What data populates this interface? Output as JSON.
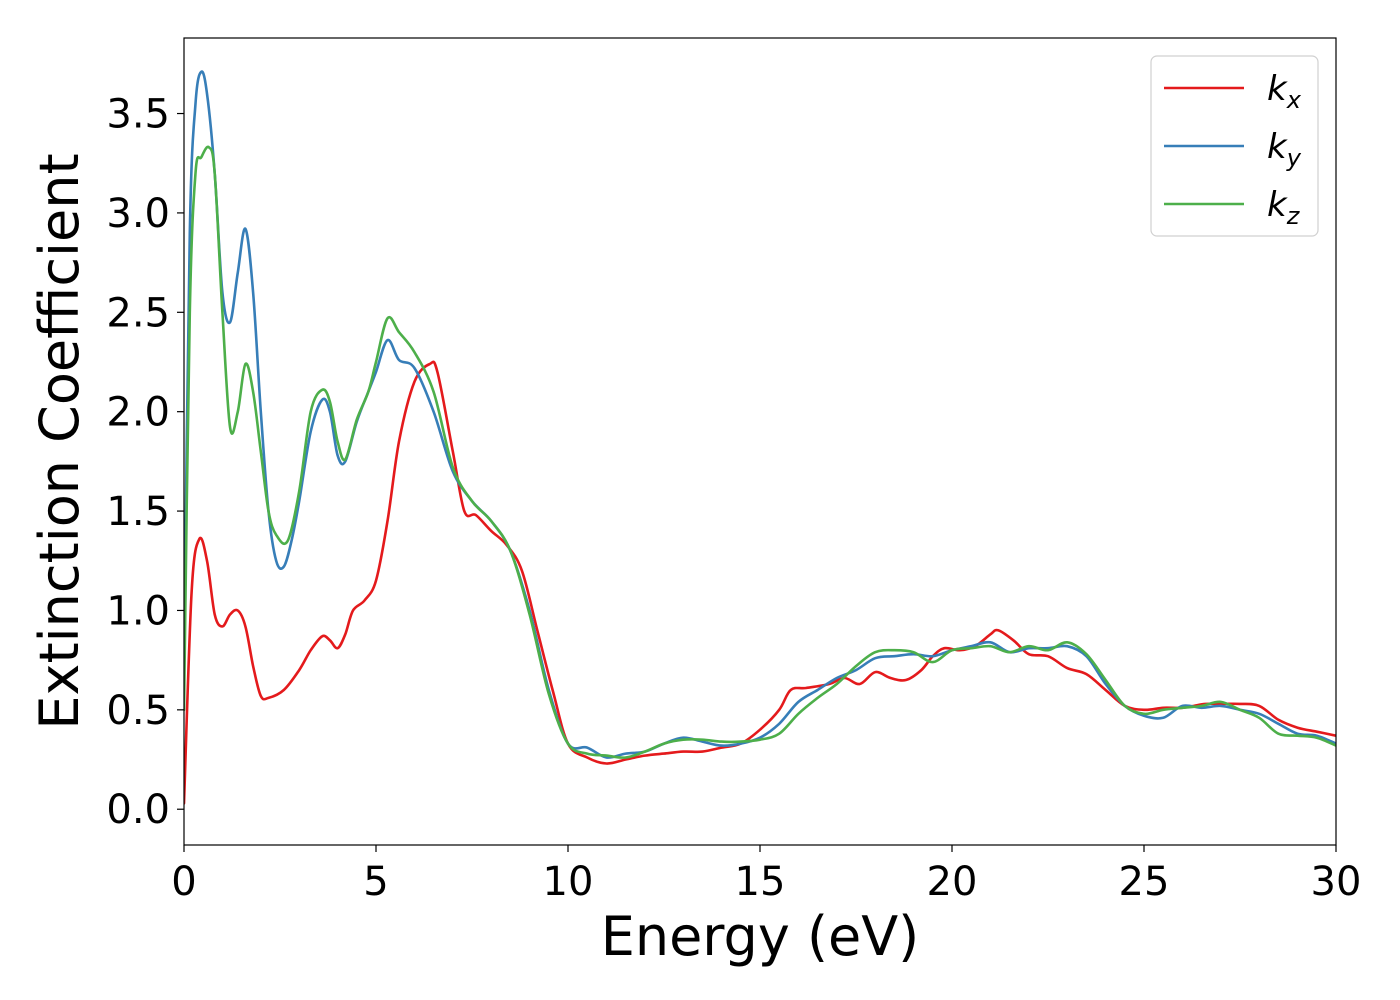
{
  "chart_data": {
    "type": "line",
    "title": "",
    "xlabel": "Energy (eV)",
    "ylabel": "Extinction Coefficient",
    "xlim": [
      0,
      30
    ],
    "ylim": [
      -0.18,
      3.88
    ],
    "xticks": [
      0,
      5,
      10,
      15,
      20,
      25,
      30
    ],
    "xtick_labels": [
      "0",
      "5",
      "10",
      "15",
      "20",
      "25",
      "30"
    ],
    "yticks": [
      0.0,
      0.5,
      1.0,
      1.5,
      2.0,
      2.5,
      3.0,
      3.5
    ],
    "ytick_labels": [
      "0.0",
      "0.5",
      "1.0",
      "1.5",
      "2.0",
      "2.5",
      "3.0",
      "3.5"
    ],
    "grid": false,
    "legend_position": "top-right",
    "series": [
      {
        "name": "k",
        "subscript": "x",
        "color": "#e41a1c",
        "x": [
          0,
          0.2,
          0.4,
          0.6,
          0.8,
          1.0,
          1.2,
          1.4,
          1.6,
          1.8,
          2.0,
          2.2,
          2.6,
          3.0,
          3.3,
          3.6,
          3.8,
          4.0,
          4.2,
          4.4,
          4.7,
          5.0,
          5.3,
          5.6,
          6.0,
          6.4,
          6.6,
          7.0,
          7.3,
          7.6,
          8.0,
          8.4,
          8.8,
          9.2,
          9.6,
          10.0,
          10.5,
          11.0,
          11.5,
          12.0,
          12.5,
          13.0,
          13.5,
          14.0,
          14.5,
          15.0,
          15.5,
          15.8,
          16.2,
          16.8,
          17.2,
          17.6,
          18.0,
          18.4,
          18.8,
          19.2,
          19.5,
          19.8,
          20.2,
          20.6,
          21.0,
          21.2,
          21.6,
          22.0,
          22.5,
          23.0,
          23.5,
          24.0,
          24.5,
          25.0,
          25.5,
          26.0,
          26.3,
          26.6,
          27.0,
          27.5,
          28.0,
          28.5,
          29.0,
          29.5,
          30.0
        ],
        "y": [
          0.03,
          1.1,
          1.36,
          1.25,
          0.98,
          0.92,
          0.98,
          1.0,
          0.92,
          0.72,
          0.57,
          0.56,
          0.6,
          0.7,
          0.8,
          0.87,
          0.85,
          0.81,
          0.88,
          1.0,
          1.05,
          1.15,
          1.45,
          1.85,
          2.15,
          2.24,
          2.2,
          1.8,
          1.5,
          1.48,
          1.4,
          1.33,
          1.2,
          0.9,
          0.6,
          0.33,
          0.26,
          0.23,
          0.25,
          0.27,
          0.28,
          0.29,
          0.29,
          0.31,
          0.33,
          0.4,
          0.5,
          0.6,
          0.61,
          0.63,
          0.66,
          0.63,
          0.69,
          0.66,
          0.65,
          0.7,
          0.77,
          0.81,
          0.8,
          0.82,
          0.88,
          0.9,
          0.85,
          0.78,
          0.77,
          0.71,
          0.68,
          0.6,
          0.52,
          0.5,
          0.51,
          0.51,
          0.52,
          0.53,
          0.53,
          0.53,
          0.52,
          0.45,
          0.41,
          0.39,
          0.37
        ]
      },
      {
        "name": "k",
        "subscript": "y",
        "color": "#377eb8",
        "x": [
          0,
          0.15,
          0.3,
          0.45,
          0.6,
          0.8,
          1.0,
          1.2,
          1.4,
          1.6,
          1.8,
          2.0,
          2.2,
          2.4,
          2.6,
          2.8,
          3.0,
          3.3,
          3.6,
          3.8,
          4.0,
          4.2,
          4.5,
          4.8,
          5.0,
          5.3,
          5.6,
          6.0,
          6.5,
          7.0,
          7.5,
          8.0,
          8.5,
          9.0,
          9.5,
          10.0,
          10.5,
          11.0,
          11.5,
          12.0,
          12.5,
          13.0,
          13.5,
          14.0,
          14.5,
          15.0,
          15.5,
          16.0,
          16.5,
          17.0,
          17.5,
          18.0,
          18.5,
          19.0,
          19.5,
          20.0,
          20.5,
          21.0,
          21.5,
          22.0,
          22.5,
          23.0,
          23.5,
          24.0,
          24.5,
          25.0,
          25.5,
          26.0,
          26.5,
          27.0,
          27.5,
          28.0,
          28.5,
          29.0,
          29.5,
          30.0
        ],
        "y": [
          0.7,
          2.9,
          3.55,
          3.71,
          3.6,
          3.2,
          2.6,
          2.45,
          2.7,
          2.92,
          2.6,
          2.0,
          1.5,
          1.25,
          1.22,
          1.35,
          1.55,
          1.9,
          2.06,
          2.0,
          1.78,
          1.75,
          1.95,
          2.1,
          2.2,
          2.36,
          2.26,
          2.22,
          2.0,
          1.7,
          1.55,
          1.45,
          1.3,
          1.0,
          0.6,
          0.33,
          0.31,
          0.26,
          0.28,
          0.29,
          0.33,
          0.36,
          0.34,
          0.32,
          0.33,
          0.36,
          0.43,
          0.54,
          0.6,
          0.66,
          0.7,
          0.76,
          0.77,
          0.78,
          0.77,
          0.8,
          0.82,
          0.84,
          0.79,
          0.81,
          0.81,
          0.82,
          0.77,
          0.63,
          0.52,
          0.47,
          0.46,
          0.52,
          0.51,
          0.52,
          0.5,
          0.48,
          0.43,
          0.38,
          0.37,
          0.33
        ]
      },
      {
        "name": "k",
        "subscript": "z",
        "color": "#4daf4a",
        "x": [
          0,
          0.15,
          0.3,
          0.45,
          0.65,
          0.8,
          1.0,
          1.2,
          1.4,
          1.6,
          1.8,
          2.0,
          2.2,
          2.4,
          2.7,
          3.0,
          3.3,
          3.6,
          3.8,
          4.0,
          4.2,
          4.5,
          4.8,
          5.0,
          5.3,
          5.6,
          6.0,
          6.5,
          7.0,
          7.5,
          8.0,
          8.5,
          9.0,
          9.5,
          10.0,
          10.5,
          11.0,
          11.5,
          12.0,
          12.5,
          13.0,
          13.5,
          14.0,
          14.5,
          15.0,
          15.5,
          16.0,
          16.5,
          17.0,
          17.5,
          18.0,
          18.5,
          19.0,
          19.5,
          20.0,
          20.5,
          21.0,
          21.5,
          22.0,
          22.5,
          23.0,
          23.5,
          24.0,
          24.5,
          25.0,
          25.5,
          26.0,
          26.5,
          27.0,
          27.5,
          28.0,
          28.5,
          29.0,
          29.5,
          30.0
        ],
        "y": [
          0.5,
          2.5,
          3.2,
          3.28,
          3.33,
          3.2,
          2.5,
          1.92,
          2.0,
          2.24,
          2.1,
          1.8,
          1.5,
          1.38,
          1.35,
          1.6,
          2.0,
          2.11,
          2.05,
          1.85,
          1.76,
          1.96,
          2.1,
          2.25,
          2.47,
          2.4,
          2.3,
          2.1,
          1.72,
          1.55,
          1.45,
          1.3,
          0.98,
          0.58,
          0.33,
          0.28,
          0.27,
          0.26,
          0.29,
          0.33,
          0.35,
          0.35,
          0.34,
          0.34,
          0.35,
          0.38,
          0.48,
          0.56,
          0.63,
          0.72,
          0.79,
          0.8,
          0.79,
          0.74,
          0.8,
          0.81,
          0.82,
          0.79,
          0.82,
          0.8,
          0.84,
          0.78,
          0.65,
          0.52,
          0.48,
          0.5,
          0.51,
          0.52,
          0.54,
          0.5,
          0.46,
          0.38,
          0.37,
          0.36,
          0.32
        ]
      }
    ]
  }
}
